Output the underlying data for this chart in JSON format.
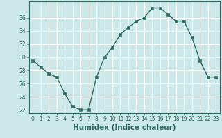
{
  "x": [
    0,
    1,
    2,
    3,
    4,
    5,
    6,
    7,
    8,
    9,
    10,
    11,
    12,
    13,
    14,
    15,
    16,
    17,
    18,
    19,
    20,
    21,
    22,
    23
  ],
  "y": [
    29.5,
    28.5,
    27.5,
    27.0,
    24.5,
    22.5,
    22.0,
    22.0,
    27.0,
    30.0,
    31.5,
    33.5,
    34.5,
    35.5,
    36.0,
    37.5,
    37.5,
    36.5,
    35.5,
    35.5,
    33.0,
    29.5,
    27.0,
    27.0
  ],
  "line_color": "#2d6b5e",
  "marker_color": "#2d6b5e",
  "bg_color": "#cce8e8",
  "grid_color": "#ffffff",
  "axis_color": "#2d6b5e",
  "xlabel": "Humidex (Indice chaleur)",
  "xlim": [
    -0.5,
    23.5
  ],
  "ylim": [
    21.5,
    38.5
  ],
  "yticks": [
    22,
    24,
    26,
    28,
    30,
    32,
    34,
    36
  ],
  "xticks": [
    0,
    1,
    2,
    3,
    4,
    5,
    6,
    7,
    8,
    9,
    10,
    11,
    12,
    13,
    14,
    15,
    16,
    17,
    18,
    19,
    20,
    21,
    22,
    23
  ],
  "tick_fontsize": 5.5,
  "label_fontsize": 7.5
}
